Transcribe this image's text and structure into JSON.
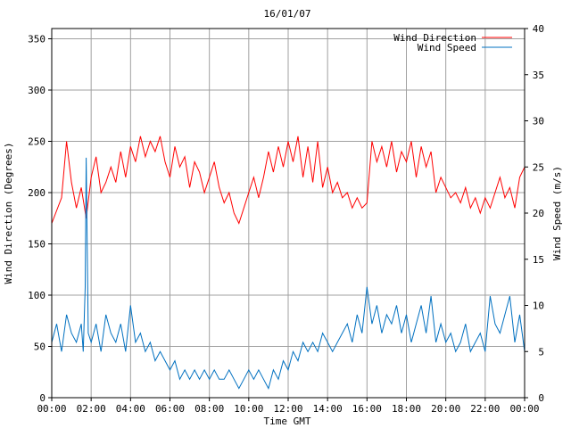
{
  "chart_data": {
    "type": "line",
    "title": "16/01/07",
    "xlabel": "Time GMT",
    "ylabel_left": "Wind Direction (Degrees)",
    "ylabel_right": "Wind Speed (m/s)",
    "x_ticks": [
      "00:00",
      "02:00",
      "04:00",
      "06:00",
      "08:00",
      "10:00",
      "12:00",
      "14:00",
      "16:00",
      "18:00",
      "20:00",
      "22:00",
      "00:00"
    ],
    "y_left_ticks": [
      "0",
      "50",
      "100",
      "150",
      "200",
      "250",
      "300",
      "350"
    ],
    "y_right_ticks": [
      "0",
      "5",
      "10",
      "15",
      "20",
      "25",
      "30",
      "35",
      "40"
    ],
    "ylim_left": [
      0,
      360
    ],
    "ylim_right": [
      0,
      40
    ],
    "xlim_hours": [
      0,
      24
    ],
    "grid": true,
    "legend_position": "top-right",
    "series": [
      {
        "name": "Wind Direction",
        "axis": "left",
        "color": "#ff0000",
        "x_hours": [
          0,
          0.5,
          0.75,
          1,
          1.25,
          1.5,
          1.75,
          2,
          2.25,
          2.5,
          2.75,
          3,
          3.25,
          3.5,
          3.75,
          4,
          4.25,
          4.5,
          4.75,
          5,
          5.25,
          5.5,
          5.75,
          6,
          6.25,
          6.5,
          6.75,
          7,
          7.25,
          7.5,
          7.75,
          8,
          8.25,
          8.5,
          8.75,
          9,
          9.25,
          9.5,
          9.75,
          10,
          10.25,
          10.5,
          10.75,
          11,
          11.25,
          11.5,
          11.75,
          12,
          12.25,
          12.5,
          12.75,
          13,
          13.25,
          13.5,
          13.75,
          14,
          14.25,
          14.5,
          14.75,
          15,
          15.25,
          15.5,
          15.75,
          16,
          16.25,
          16.5,
          16.75,
          17,
          17.25,
          17.5,
          17.75,
          18,
          18.25,
          18.5,
          18.75,
          19,
          19.25,
          19.5,
          19.75,
          20,
          20.25,
          20.5,
          20.75,
          21,
          21.25,
          21.5,
          21.75,
          22,
          22.25,
          22.5,
          22.75,
          23,
          23.25,
          23.5,
          23.75,
          24
        ],
        "values": [
          170,
          195,
          250,
          210,
          185,
          205,
          175,
          215,
          235,
          200,
          210,
          225,
          210,
          240,
          215,
          245,
          230,
          255,
          235,
          250,
          240,
          255,
          230,
          215,
          245,
          225,
          235,
          205,
          230,
          220,
          200,
          215,
          230,
          205,
          190,
          200,
          180,
          170,
          185,
          200,
          215,
          195,
          215,
          240,
          220,
          245,
          225,
          250,
          230,
          255,
          215,
          245,
          210,
          250,
          205,
          225,
          200,
          210,
          195,
          200,
          185,
          195,
          185,
          190,
          250,
          230,
          245,
          225,
          250,
          220,
          240,
          230,
          250,
          215,
          245,
          225,
          240,
          200,
          215,
          205,
          195,
          200,
          190,
          205,
          185,
          195,
          180,
          195,
          185,
          200,
          215,
          195,
          205,
          185,
          215,
          225
        ],
        "label_visible": true
      },
      {
        "name": "Wind Speed",
        "axis": "right",
        "color": "#0070c0",
        "x_hours": [
          0,
          0.25,
          0.5,
          0.75,
          1,
          1.25,
          1.5,
          1.6,
          1.7,
          1.75,
          1.85,
          2,
          2.25,
          2.5,
          2.75,
          3,
          3.25,
          3.5,
          3.75,
          4,
          4.25,
          4.5,
          4.75,
          5,
          5.25,
          5.5,
          5.75,
          6,
          6.25,
          6.5,
          6.75,
          7,
          7.25,
          7.5,
          7.75,
          8,
          8.25,
          8.5,
          8.75,
          9,
          9.25,
          9.5,
          9.75,
          10,
          10.25,
          10.5,
          10.75,
          11,
          11.25,
          11.5,
          11.75,
          12,
          12.25,
          12.5,
          12.75,
          13,
          13.25,
          13.5,
          13.75,
          14,
          14.25,
          14.5,
          14.75,
          15,
          15.25,
          15.5,
          15.75,
          16,
          16.25,
          16.5,
          16.75,
          17,
          17.25,
          17.5,
          17.75,
          18,
          18.25,
          18.5,
          18.75,
          19,
          19.25,
          19.5,
          19.75,
          20,
          20.25,
          20.5,
          20.75,
          21,
          21.25,
          21.5,
          21.75,
          22,
          22.25,
          22.5,
          22.75,
          23,
          23.25,
          23.5,
          23.75,
          24
        ],
        "values": [
          6,
          8,
          5,
          9,
          7,
          6,
          8,
          5,
          12,
          26,
          7,
          6,
          8,
          5,
          9,
          7,
          6,
          8,
          5,
          10,
          6,
          7,
          5,
          6,
          4,
          5,
          4,
          3,
          4,
          2,
          3,
          2,
          3,
          2,
          3,
          2,
          3,
          2,
          2,
          3,
          2,
          1,
          2,
          3,
          2,
          3,
          2,
          1,
          3,
          2,
          4,
          3,
          5,
          4,
          6,
          5,
          6,
          5,
          7,
          6,
          5,
          6,
          7,
          8,
          6,
          9,
          7,
          12,
          8,
          10,
          7,
          9,
          8,
          10,
          7,
          9,
          6,
          8,
          10,
          7,
          11,
          6,
          8,
          6,
          7,
          5,
          6,
          8,
          5,
          6,
          7,
          5,
          11,
          8,
          7,
          9,
          11,
          6,
          9,
          5
        ],
        "label_visible": true
      }
    ]
  }
}
